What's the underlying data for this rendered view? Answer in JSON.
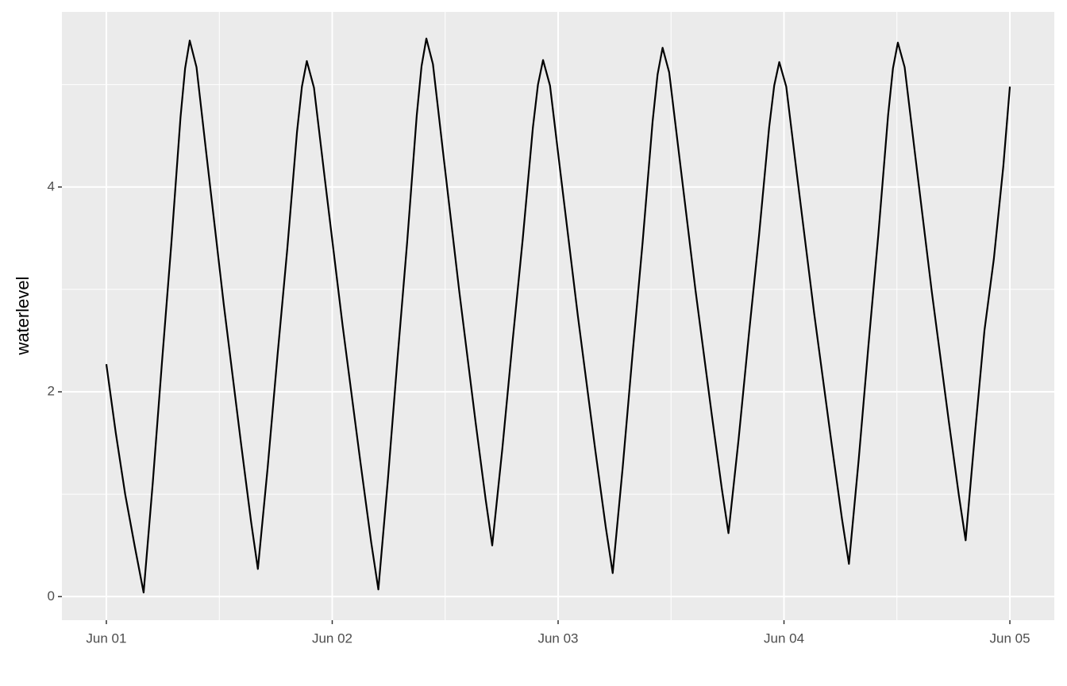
{
  "chart_data": {
    "type": "line",
    "y_label": "waterlevel",
    "x": [
      0,
      1,
      2,
      3,
      3.96,
      4.94,
      5.92,
      6.9,
      7.88,
      8.37,
      8.86,
      9.58,
      10.67,
      12.48,
      14.29,
      15.38,
      16.1,
      17.14,
      18.18,
      19.22,
      20.26,
      20.78,
      21.3,
      22.06,
      23.2,
      25.1,
      27.0,
      28.14,
      28.9,
      29.92,
      30.94,
      31.96,
      32.98,
      33.49,
      34.0,
      34.7,
      35.75,
      37.5,
      39.25,
      40.3,
      41.0,
      42.08,
      43.16,
      44.24,
      45.32,
      45.86,
      46.4,
      47.14,
      48.25,
      50.1,
      51.95,
      53.06,
      53.8,
      54.86,
      55.92,
      56.98,
      58.04,
      58.57,
      59.1,
      59.8,
      60.85,
      62.6,
      64.35,
      65.4,
      66.1,
      67.18,
      68.26,
      69.34,
      70.42,
      70.96,
      71.5,
      72.24,
      73.35,
      75.2,
      77.05,
      78.16,
      78.9,
      79.94,
      80.98,
      82.02,
      83.06,
      83.58,
      84.1,
      84.82,
      85.9,
      87.7,
      89.5,
      90.58,
      91.3,
      92.3,
      93.3,
      94.3,
      95.3,
      96
    ],
    "values": [
      2.27,
      1.6,
      1.0,
      0.5,
      0.04,
      1.12,
      2.3,
      3.44,
      4.68,
      5.16,
      5.43,
      5.17,
      4.29,
      2.85,
      1.51,
      0.73,
      0.27,
      1.26,
      2.35,
      3.39,
      4.54,
      4.98,
      5.23,
      4.97,
      4.09,
      2.65,
      1.31,
      0.53,
      0.07,
      1.15,
      2.33,
      3.46,
      4.7,
      5.18,
      5.45,
      5.2,
      4.36,
      2.98,
      1.69,
      0.95,
      0.5,
      1.45,
      2.49,
      3.49,
      4.58,
      5.0,
      5.24,
      4.99,
      4.14,
      2.74,
      1.43,
      0.68,
      0.23,
      1.26,
      2.38,
      3.46,
      4.64,
      5.1,
      5.36,
      5.12,
      4.32,
      2.99,
      1.76,
      1.05,
      0.62,
      1.54,
      2.55,
      3.52,
      4.58,
      4.99,
      5.22,
      4.98,
      4.14,
      2.77,
      1.5,
      0.76,
      0.32,
      1.34,
      2.46,
      3.53,
      4.7,
      5.16,
      5.41,
      5.17,
      4.34,
      2.98,
      1.72,
      0.99,
      0.55,
      1.6,
      2.6,
      3.3,
      4.2,
      4.98
    ],
    "color": "#000000",
    "xlim": [
      -4.72,
      100.72
    ],
    "xticks": [
      {
        "value": 0,
        "label": "Jun 01"
      },
      {
        "value": 24,
        "label": "Jun 02"
      },
      {
        "value": 48,
        "label": "Jun 03"
      },
      {
        "value": 72,
        "label": "Jun 04"
      },
      {
        "value": 96,
        "label": "Jun 05"
      }
    ],
    "x_minor_grid": [
      12,
      36,
      60,
      84
    ],
    "ylim": [
      -0.23,
      5.71
    ],
    "yticks": [
      0,
      2,
      4
    ],
    "y_minor_grid": [
      1,
      3,
      5
    ],
    "grid": true
  }
}
